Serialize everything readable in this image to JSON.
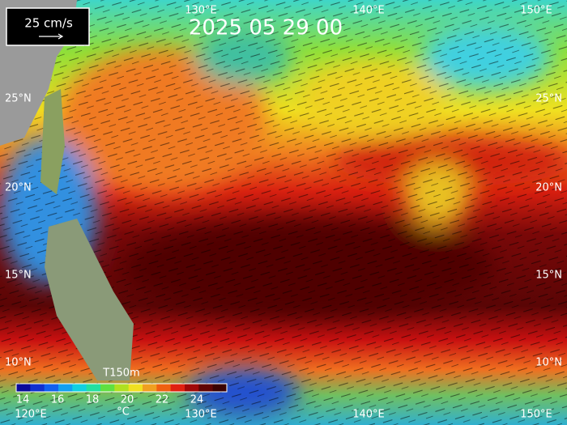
{
  "scale_label": "25 cm/s",
  "timestamp": "2025 05 29 00",
  "top_longitudes": [
    "130°E",
    "140°E",
    "150°E"
  ],
  "bottom_longitudes": [
    "120°E",
    "130°E",
    "140°E",
    "150°E"
  ],
  "left_latitudes": [
    "25°N",
    "20°N",
    "15°N",
    "10°N"
  ],
  "right_latitudes": [
    "25°N",
    "20°N",
    "15°N",
    "10°N"
  ],
  "colorbar": {
    "variable": "T150m",
    "unit": "°C",
    "ticks": [
      "14",
      "16",
      "18",
      "20",
      "22",
      "24"
    ]
  }
}
